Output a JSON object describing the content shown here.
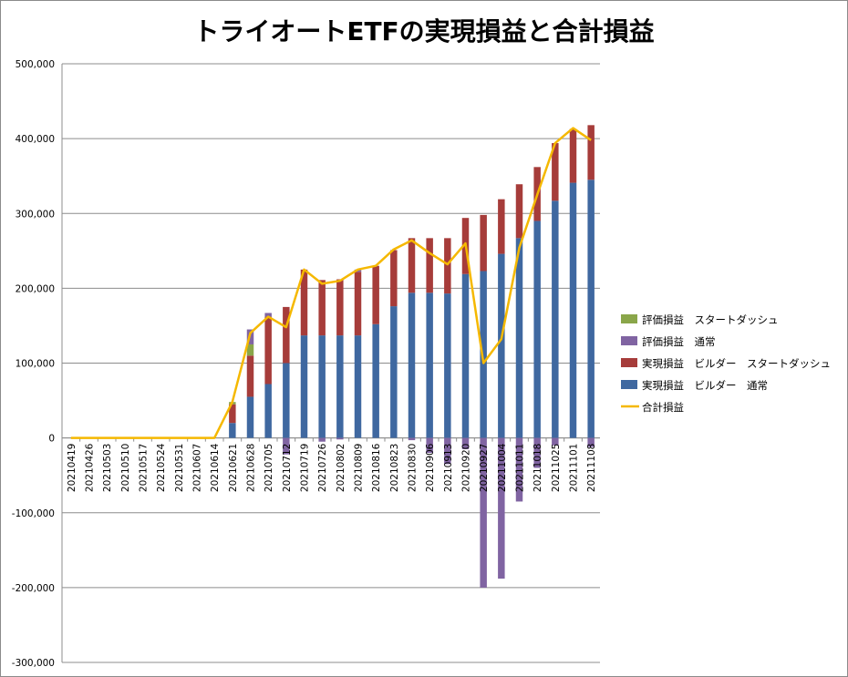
{
  "chart_data": {
    "type": "bar",
    "stacked": true,
    "title": "トライオートETFの実現損益と合計損益",
    "ylim": [
      -300000,
      500000
    ],
    "ytick_step": 100000,
    "ytick_labels": [
      "-300,000",
      "-200,000",
      "-100,000",
      "0",
      "100,000",
      "200,000",
      "300,000",
      "400,000",
      "500,000"
    ],
    "negative_tick_color": "#e00000",
    "grid": true,
    "legend_position": "right",
    "categories": [
      "20210419",
      "20210426",
      "20210503",
      "20210510",
      "20210517",
      "20210524",
      "20210531",
      "20210607",
      "20210614",
      "20210621",
      "20210628",
      "20210705",
      "20210712",
      "20210719",
      "20210726",
      "20210802",
      "20210809",
      "20210816",
      "20210823",
      "20210830",
      "20210906",
      "20210913",
      "20210920",
      "20210927",
      "20211004",
      "20211011",
      "20211018",
      "20211025",
      "20211101",
      "20211108"
    ],
    "series": [
      {
        "name": "評価損益　スタートダッシュ",
        "type": "bar",
        "color": "#8aa64a",
        "values": [
          0,
          0,
          0,
          0,
          0,
          0,
          0,
          0,
          0,
          3000,
          15000,
          0,
          0,
          0,
          0,
          0,
          0,
          0,
          0,
          0,
          0,
          0,
          0,
          0,
          0,
          0,
          0,
          0,
          0,
          0
        ]
      },
      {
        "name": "評価損益　通常",
        "type": "bar",
        "color": "#8064a2",
        "values": [
          0,
          0,
          0,
          0,
          0,
          0,
          0,
          0,
          0,
          0,
          20000,
          5000,
          -22000,
          0,
          -5000,
          -2000,
          3000,
          0,
          0,
          -3000,
          -20000,
          -35000,
          -15000,
          -200000,
          -188000,
          -85000,
          -40000,
          -10000,
          0,
          -12000
        ]
      },
      {
        "name": "実現損益　ビルダー　スタートダッシュ",
        "type": "bar",
        "color": "#a63c3a",
        "values": [
          0,
          0,
          0,
          0,
          0,
          0,
          0,
          0,
          0,
          25000,
          55000,
          90000,
          75000,
          88000,
          74000,
          75000,
          85000,
          78000,
          75000,
          73000,
          73000,
          74000,
          75000,
          75000,
          73000,
          72000,
          72000,
          77000,
          72000,
          73000
        ]
      },
      {
        "name": "実現損益　ビルダー　通常",
        "type": "bar",
        "color": "#3f68a0",
        "values": [
          0,
          0,
          0,
          0,
          0,
          0,
          0,
          0,
          0,
          20000,
          55000,
          72000,
          100000,
          137000,
          137000,
          137000,
          137000,
          152000,
          176000,
          194000,
          194000,
          193000,
          219000,
          223000,
          246000,
          267000,
          290000,
          317000,
          341000,
          345000
        ]
      },
      {
        "name": "合計損益",
        "type": "line",
        "color": "#f5b800",
        "values": [
          0,
          0,
          0,
          0,
          0,
          0,
          0,
          0,
          0,
          48000,
          140000,
          162000,
          148000,
          225000,
          206000,
          210000,
          225000,
          230000,
          252000,
          264000,
          247000,
          232000,
          260000,
          100000,
          132000,
          254000,
          325000,
          394000,
          414000,
          398000
        ]
      }
    ]
  }
}
